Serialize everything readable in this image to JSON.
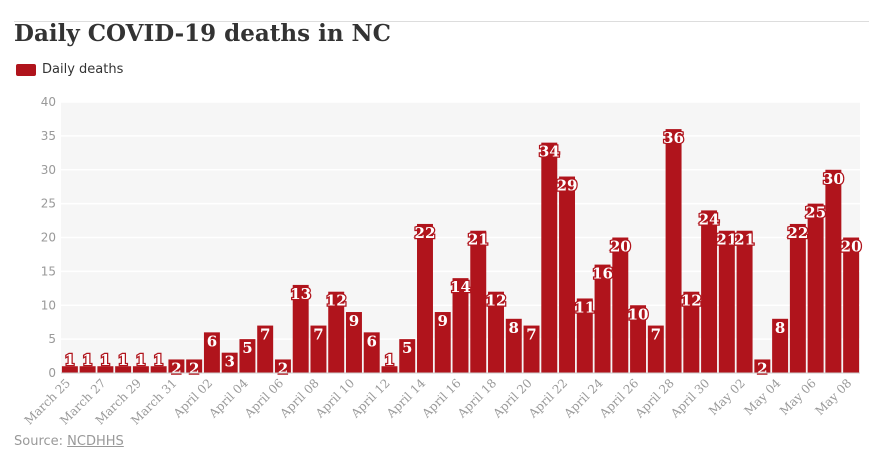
{
  "chart_data": {
    "type": "bar",
    "title": "Daily COVID-19 deaths in NC",
    "xlabel": "",
    "ylabel": "",
    "ylim": [
      0,
      40
    ],
    "yticks": [
      0,
      5,
      10,
      15,
      20,
      25,
      30,
      35,
      40
    ],
    "grid": true,
    "legend_position": "top-left",
    "tick_labels": [
      "March 25",
      "March 27",
      "March 29",
      "March 31",
      "April 02",
      "April 04",
      "April 06",
      "April 08",
      "April 10",
      "April 12",
      "April 14",
      "April 16",
      "April 18",
      "April 20",
      "April 22",
      "April 24",
      "April 26",
      "April 28",
      "April 30",
      "May 02",
      "May 04",
      "May 06",
      "May 08"
    ],
    "categories": [
      "March 25",
      "March 26",
      "March 27",
      "March 28",
      "March 29",
      "March 30",
      "March 31",
      "April 01",
      "April 02",
      "April 03",
      "April 04",
      "April 05",
      "April 06",
      "April 07",
      "April 08",
      "April 09",
      "April 10",
      "April 11",
      "April 12",
      "April 13",
      "April 14",
      "April 15",
      "April 16",
      "April 17",
      "April 18",
      "April 19",
      "April 20",
      "April 21",
      "April 22",
      "April 23",
      "April 24",
      "April 25",
      "April 26",
      "April 27",
      "April 28",
      "April 29",
      "April 30",
      "May 01",
      "May 02",
      "May 03",
      "May 04",
      "May 05",
      "May 06",
      "May 07",
      "May 08"
    ],
    "series": [
      {
        "name": "Daily deaths",
        "color": "#b0141c",
        "values": [
          1,
          1,
          1,
          1,
          1,
          1,
          2,
          2,
          6,
          3,
          5,
          7,
          2,
          13,
          7,
          12,
          9,
          6,
          1,
          5,
          22,
          9,
          14,
          21,
          12,
          8,
          7,
          34,
          29,
          11,
          16,
          20,
          10,
          7,
          36,
          12,
          24,
          21,
          21,
          2,
          8,
          22,
          25,
          30,
          20
        ]
      }
    ]
  },
  "legend": {
    "label": "Daily deaths"
  },
  "source": {
    "prefix": "Source: ",
    "link_text": "NCDHHS"
  }
}
